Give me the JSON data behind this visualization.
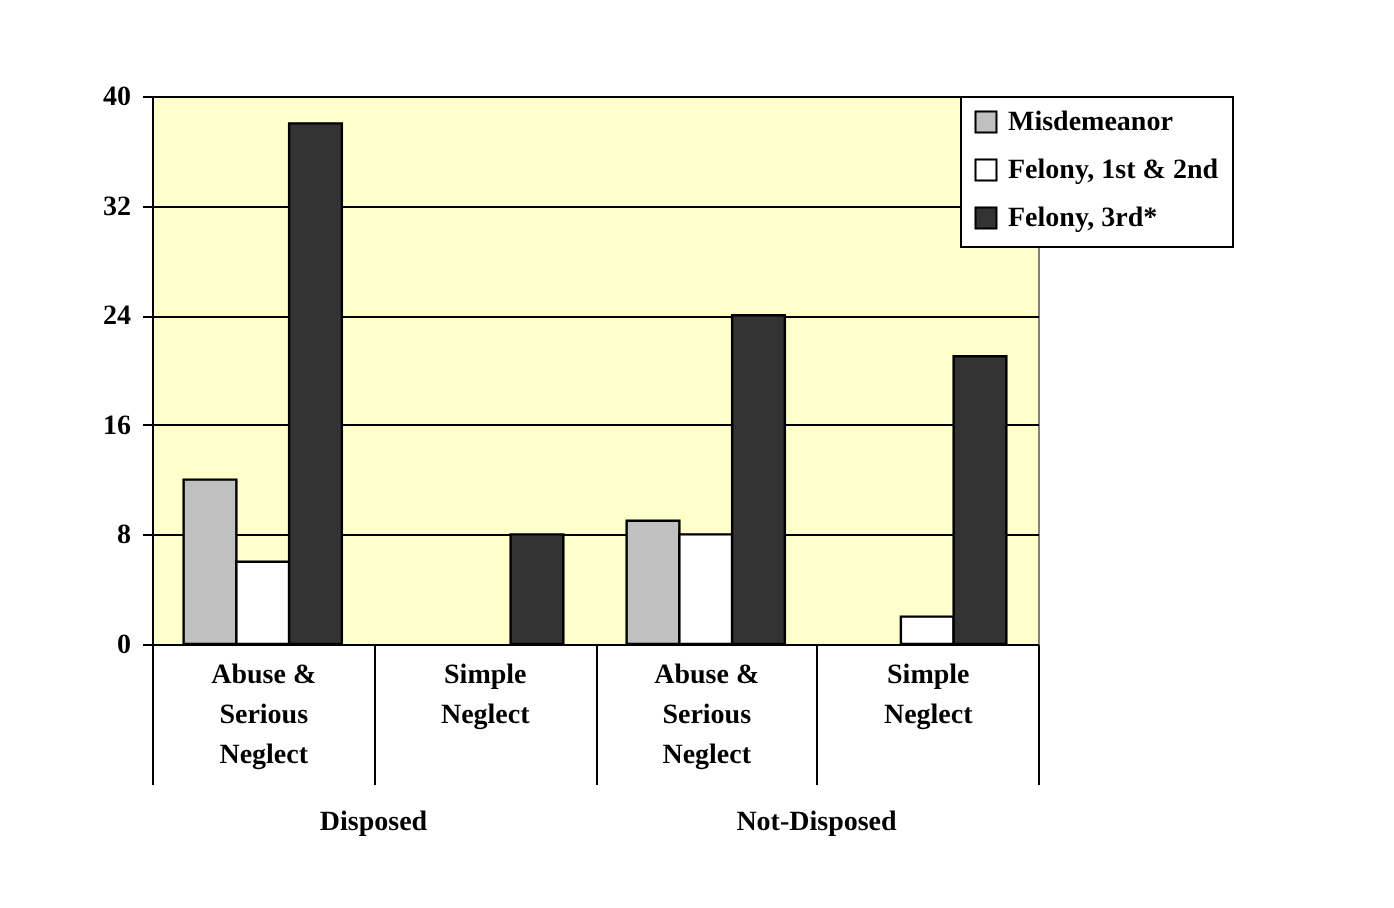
{
  "chart_data": {
    "type": "bar",
    "categories": [
      "Abuse & Serious Neglect",
      "Simple Neglect",
      "Abuse & Serious Neglect",
      "Simple Neglect"
    ],
    "series": [
      {
        "name": "Misdemeanor",
        "color": "#c0c0c0",
        "values": [
          12,
          null,
          9,
          null
        ]
      },
      {
        "name": "Felony, 1st & 2nd",
        "color": "#ffffff",
        "values": [
          6,
          null,
          8,
          2
        ]
      },
      {
        "name": "Felony, 3rd*",
        "color": "#333333",
        "values": [
          38,
          8,
          24,
          21
        ]
      }
    ],
    "annotations": [
      "Disposed",
      "Not-Disposed"
    ],
    "ylim": [
      0,
      40
    ],
    "yticks": [
      0,
      8,
      16,
      24,
      32,
      40
    ],
    "grid": "y",
    "legend": "top right"
  }
}
